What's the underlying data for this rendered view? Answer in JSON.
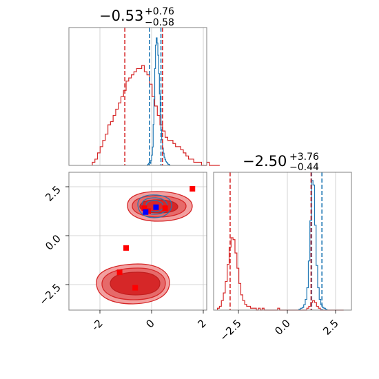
{
  "chart_data": {
    "type": "corner",
    "grid": true,
    "series": [
      {
        "name": "",
        "color": "#1f77b4"
      },
      {
        "name": "",
        "color": "#d62728"
      }
    ],
    "panels": [
      {
        "id": "hist_x",
        "type": "histogram",
        "title": {
          "value": "−0.53",
          "sup": "+0.76",
          "sub": "−0.58"
        },
        "xlim": [
          -3.3,
          2.0
        ],
        "xticks": [
          -2,
          0,
          2
        ],
        "markers": [
          {
            "series": 0,
            "style": "dashed",
            "values": [
              -0.2,
              0.24
            ]
          },
          {
            "series": 1,
            "style": "dashed",
            "values": [
              -1.15,
              0.3
            ]
          }
        ],
        "red_hist": {
          "bins_start": -2.4,
          "bin_width": 0.1,
          "counts": [
            1,
            2,
            4,
            6,
            8,
            10,
            13,
            14,
            16,
            18,
            20,
            22,
            24,
            27,
            28,
            29,
            30,
            31,
            31,
            32,
            30,
            29,
            26,
            22,
            19,
            16,
            13,
            11,
            9,
            8,
            8,
            7,
            6,
            6,
            5,
            4,
            3,
            2,
            2,
            1,
            1,
            1,
            0,
            0,
            1,
            0,
            0,
            0,
            0
          ],
          "max": 32
        },
        "blue_hist": {
          "bins_start": -0.3,
          "bin_width": 0.03,
          "counts": [
            0,
            1,
            2,
            3,
            2,
            5,
            10,
            18,
            40,
            65,
            95,
            118,
            125,
            120,
            108,
            90,
            70,
            50,
            35,
            25,
            17,
            12,
            8,
            6,
            4,
            3,
            2,
            1,
            1,
            0
          ],
          "max": 125
        }
      },
      {
        "id": "hist_y",
        "type": "histogram",
        "title": {
          "value": "−2.50",
          "sup": "+3.76",
          "sub": "−0.44"
        },
        "xlim": [
          -3.8,
          3.3
        ],
        "xticks": [
          -2.5,
          0.0,
          2.5
        ],
        "tick_labels": [
          "−2.5",
          "0.0",
          "2.5"
        ],
        "markers": [
          {
            "series": 0,
            "style": "dashed",
            "values": [
              1.25,
              1.78
            ]
          },
          {
            "series": 1,
            "style": "dashed",
            "values": [
              -2.95,
              1.22
            ]
          }
        ],
        "red_hist": {
          "bins_start": -3.6,
          "bin_width": 0.1,
          "counts": [
            1,
            2,
            5,
            9,
            15,
            24,
            33,
            38,
            37,
            30,
            22,
            14,
            8,
            5,
            3,
            2,
            2,
            1,
            1,
            1,
            0,
            1,
            0,
            1,
            0,
            0,
            0,
            0,
            0,
            0,
            0,
            1,
            0,
            0,
            0,
            0,
            0,
            0,
            0,
            0,
            0,
            0,
            0,
            0,
            0,
            0,
            1,
            2,
            4,
            5,
            4,
            2,
            1,
            0,
            0,
            0,
            0,
            0,
            0,
            0,
            0,
            0,
            0,
            0,
            0
          ],
          "max": 38
        },
        "blue_hist": {
          "bins_start": 0.6,
          "bin_width": 0.08,
          "counts": [
            1,
            2,
            3,
            6,
            12,
            25,
            55,
            100,
            145,
            140,
            95,
            50,
            25,
            12,
            6,
            3,
            2,
            1
          ],
          "max": 145
        }
      },
      {
        "id": "joint",
        "type": "scatter_contour",
        "xlim": [
          -3.3,
          2.0
        ],
        "ylim": [
          -3.8,
          3.3
        ],
        "xticks": [
          -2,
          0,
          2
        ],
        "yticks": [
          -2.5,
          0.0,
          2.5
        ],
        "ytick_labels": [
          "−2.5",
          "0.0",
          "2.5"
        ],
        "red_points": [
          [
            1.45,
            2.45
          ],
          [
            -1.1,
            -0.6
          ],
          [
            -1.35,
            -1.85
          ],
          [
            -0.75,
            -2.65
          ],
          [
            -0.4,
            1.45
          ],
          [
            0.4,
            1.45
          ],
          [
            -0.25,
            1.3
          ]
        ],
        "blue_points": [
          [
            0.05,
            1.5
          ],
          [
            -0.35,
            1.25
          ]
        ]
      }
    ]
  }
}
